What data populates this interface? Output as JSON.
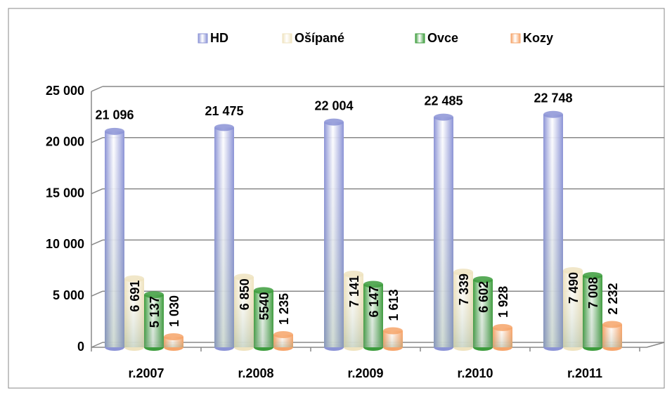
{
  "chart_data": {
    "type": "bar",
    "categories": [
      "r.2007",
      "r.2008",
      "r.2009",
      "r.2010",
      "r.2011"
    ],
    "series": [
      {
        "name": "HD",
        "color": "#8b93d6",
        "values": [
          21096,
          21475,
          22004,
          22485,
          22748
        ],
        "value_labels": [
          "21 096",
          "21 475",
          "22 004",
          "22 485",
          "22 748"
        ]
      },
      {
        "name": "Ošípané",
        "color": "#efe3bf",
        "values": [
          6691,
          6850,
          7141,
          7339,
          7490
        ],
        "value_labels": [
          "6 691",
          "6 850",
          "7 141",
          "7 339",
          "7 490"
        ]
      },
      {
        "name": "Ovce",
        "color": "#3c9c3c",
        "values": [
          5137,
          5540,
          6147,
          6602,
          7008
        ],
        "value_labels": [
          "5 137",
          "5540",
          "6 147",
          "6 602",
          "7 008"
        ]
      },
      {
        "name": "Kozy",
        "color": "#f6a46a",
        "values": [
          1030,
          1235,
          1613,
          1928,
          2232
        ],
        "value_labels": [
          "1 030",
          "1 235",
          "1 613",
          "1 928",
          "2 232"
        ]
      }
    ],
    "ylim": [
      0,
      25000
    ],
    "yticks": [
      0,
      {
        "value": 5000,
        "label": "5 000"
      },
      {
        "value": 10000,
        "label": "10 000"
      },
      {
        "value": 15000,
        "label": "15 000"
      },
      {
        "value": 20000,
        "label": "20 000"
      },
      {
        "value": 25000,
        "label": "25 000"
      }
    ],
    "grid": true,
    "legend": "top"
  }
}
